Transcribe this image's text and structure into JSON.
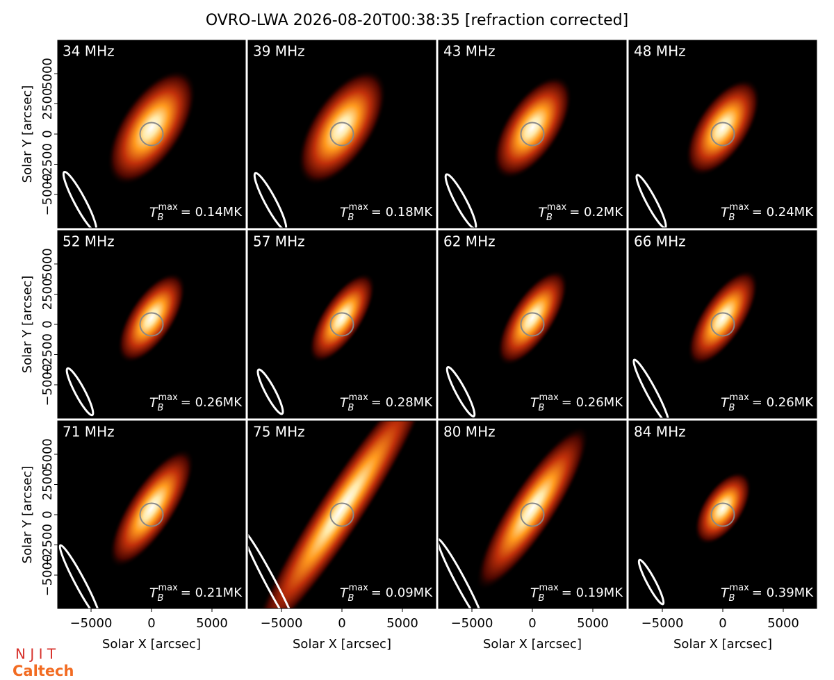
{
  "chart_data": {
    "type": "image_grid",
    "title": "OVRO-LWA 2026-08-20T00:38:35 [refraction corrected]",
    "xlabel": "Solar X [arcsec]",
    "ylabel": "Solar Y [arcsec]",
    "xlim": [
      -7760,
      7760
    ],
    "ylim": [
      -7760,
      7760
    ],
    "xticks": [
      {
        "value": -5000,
        "label": "−5000"
      },
      0,
      5000
    ],
    "yticks": [
      {
        "value": -5000,
        "label": "−5000"
      },
      {
        "value": -2500,
        "label": "−2500"
      },
      0,
      2500,
      5000
    ],
    "tb_symbol": "T",
    "tb_sub": "B",
    "tb_sup": "max",
    "panels": [
      {
        "title": "34 MHz",
        "tb_max_label": "= 0.14MK"
      },
      {
        "title": "39 MHz",
        "tb_max_label": "= 0.18MK"
      },
      {
        "title": "43 MHz",
        "tb_max_label": "= 0.2MK"
      },
      {
        "title": "48 MHz",
        "tb_max_label": "= 0.24MK"
      },
      {
        "title": "52 MHz",
        "tb_max_label": "= 0.26MK"
      },
      {
        "title": "57 MHz",
        "tb_max_label": "= 0.28MK"
      },
      {
        "title": "62 MHz",
        "tb_max_label": "= 0.26MK"
      },
      {
        "title": "66 MHz",
        "tb_max_label": "= 0.26MK"
      },
      {
        "title": "71 MHz",
        "tb_max_label": "= 0.21MK"
      },
      {
        "title": "75 MHz",
        "tb_max_label": "= 0.09MK"
      },
      {
        "title": "80 MHz",
        "tb_max_label": "= 0.19MK"
      },
      {
        "title": "84 MHz",
        "tb_max_label": "= 0.39MK"
      }
    ],
    "logos": [
      "N J I T",
      "Caltech"
    ]
  }
}
